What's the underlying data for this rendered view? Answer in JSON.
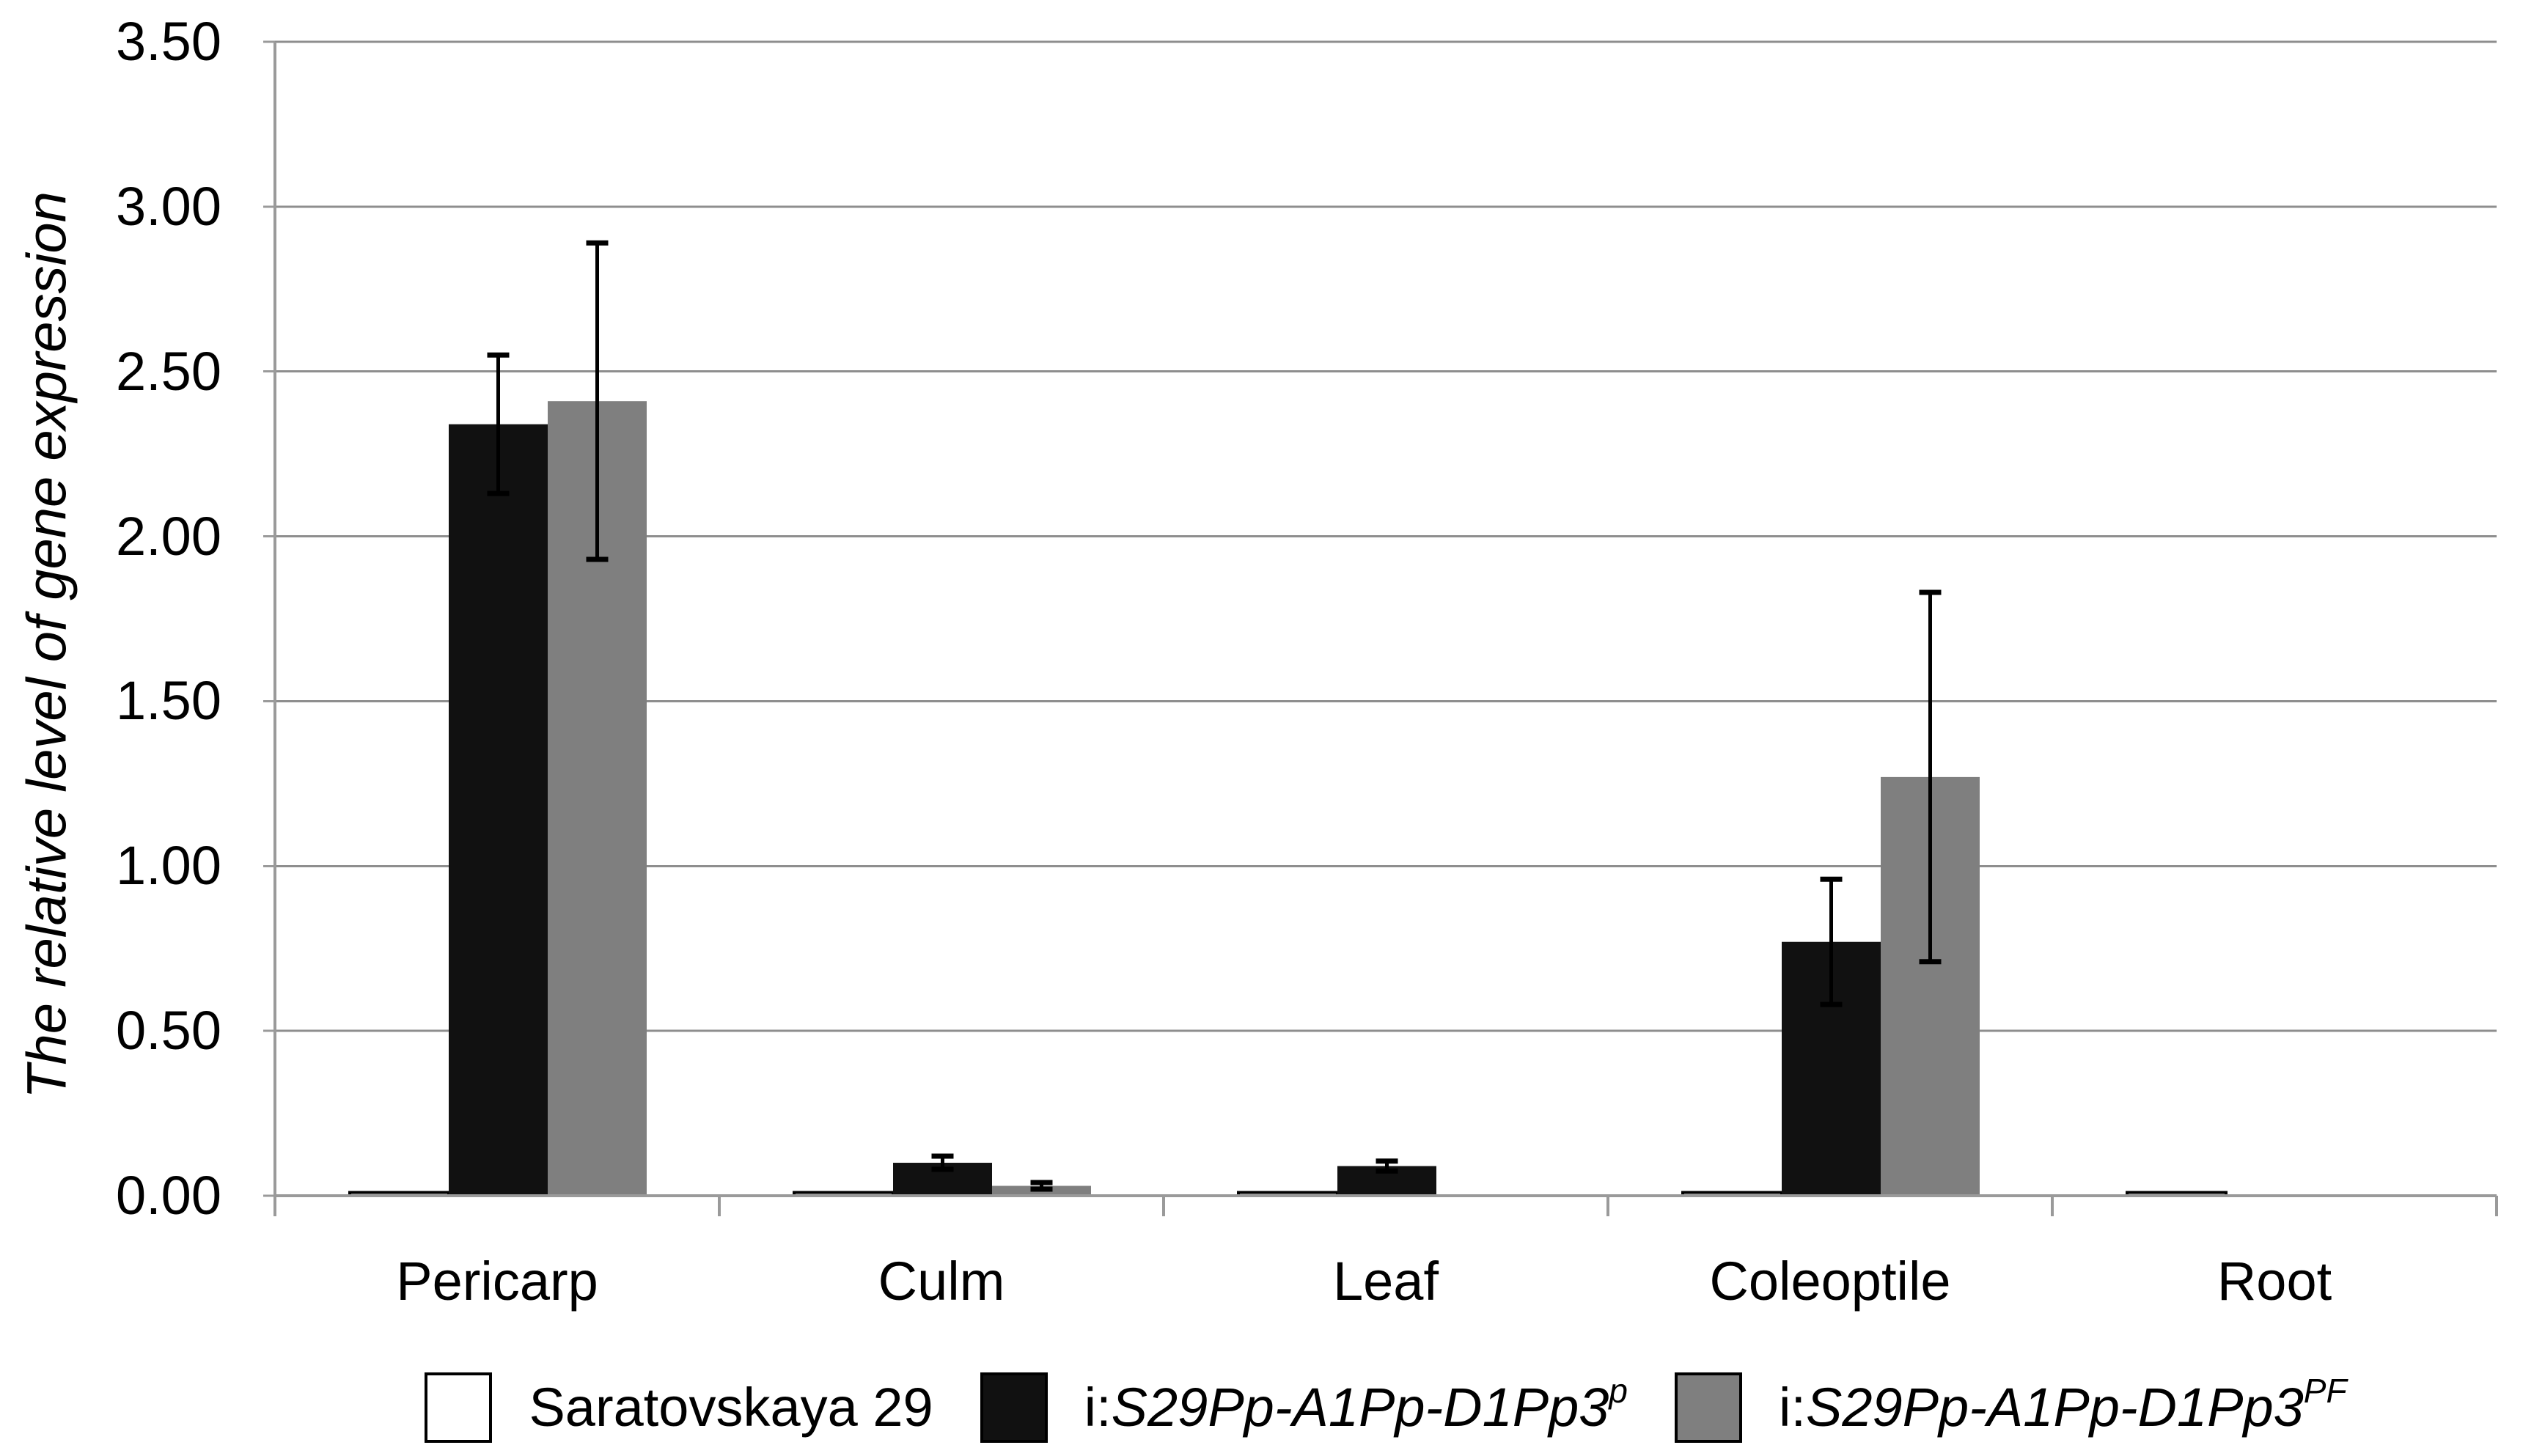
{
  "figure": {
    "background": "#ffffff"
  },
  "chart_data": {
    "type": "bar",
    "title": "",
    "xlabel": "",
    "ylabel": "The relative level of gene expression",
    "categories": [
      "Pericarp",
      "Culm",
      "Leaf",
      "Coleoptile",
      "Root"
    ],
    "y_tick_labels": [
      "3.50",
      "3.00",
      "2.50",
      "2.00",
      "1.50",
      "1.00",
      "0.50",
      "0.00"
    ],
    "ylim": [
      0,
      3.5
    ],
    "y_tick_step": 0.5,
    "grid": true,
    "legend_position": "bottom",
    "error_bars": true,
    "series": [
      {
        "name": "Saratovskaya 29",
        "label_prefix": "",
        "label_main": "Saratovskaya 29",
        "label_sup": "",
        "fill": "#ffffff",
        "border": "#000000",
        "values": [
          0.01,
          0.01,
          0.01,
          0.01,
          0.01
        ],
        "errors": [
          0,
          0,
          0,
          0,
          0
        ]
      },
      {
        "name": "i:S29Pp-A1Pp-D1Pp3p",
        "label_prefix": "i:",
        "label_main": "S29Pp-A1Pp-D1Pp3",
        "label_sup": "p",
        "fill": "#111111",
        "border": "#000000",
        "values": [
          2.34,
          0.1,
          0.09,
          0.77,
          0
        ],
        "errors": [
          0.21,
          0.02,
          0.015,
          0.19,
          0
        ]
      },
      {
        "name": "i:S29Pp-A1Pp-D1Pp3PF",
        "label_prefix": "i:",
        "label_main": "S29Pp-A1Pp-D1Pp3",
        "label_sup": "PF",
        "fill": "#7f7f7f",
        "border": "#000000",
        "values": [
          2.41,
          0.03,
          0,
          1.27,
          0
        ],
        "errors": [
          0.48,
          0.01,
          0,
          0.56,
          0
        ]
      }
    ],
    "colors": {
      "gridline": "#8e8e8e",
      "axis": "#9a9a9a",
      "error_bar": "#000000",
      "text": "#000000"
    }
  }
}
